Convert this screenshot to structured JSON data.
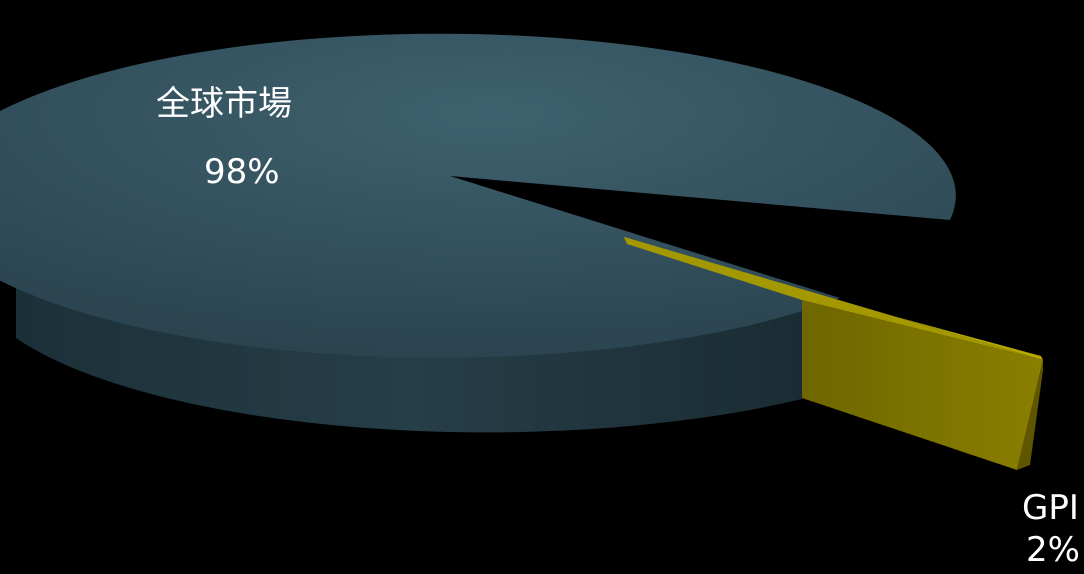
{
  "chart_data": {
    "type": "pie",
    "title": "",
    "categories": [
      "全球市場",
      "GPI"
    ],
    "values": [
      98,
      2
    ],
    "value_labels": [
      "98%",
      "2%"
    ],
    "colors": [
      "#2f4c58",
      "#8f8400"
    ],
    "style": "3d-exploded"
  }
}
